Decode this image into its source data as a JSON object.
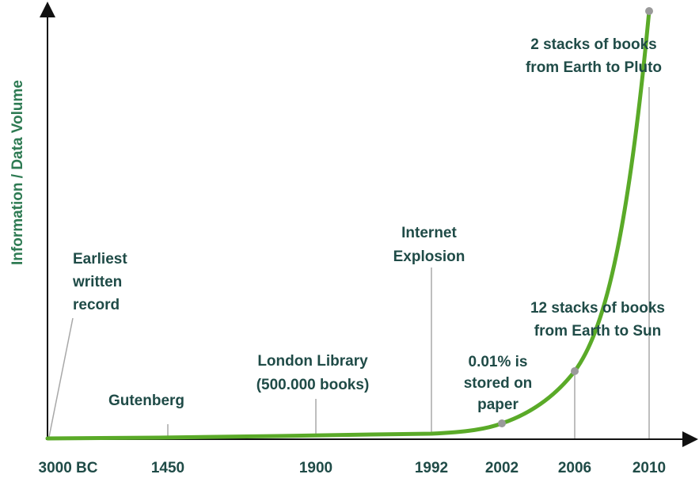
{
  "chart_data": {
    "type": "line",
    "title": "",
    "xlabel": "",
    "ylabel": "Information / Data Volume",
    "grid": false,
    "legend": "none",
    "line_color": "#5aaa28",
    "marker_color": "#9a9a9a",
    "text_color": "#1f4b47",
    "ylabel_color": "#2d7a52",
    "x_ticks": [
      "3000 BC",
      "1450",
      "1900",
      "1992",
      "2002",
      "2006",
      "2010"
    ],
    "annotations": [
      {
        "x": "3000 BC",
        "lines": [
          "Earliest",
          "written",
          "record"
        ]
      },
      {
        "x": "1450",
        "lines": [
          "Gutenberg"
        ]
      },
      {
        "x": "1900",
        "lines": [
          "London Library",
          "(500.000 books)"
        ]
      },
      {
        "x": "1992",
        "lines": [
          "Internet",
          "Explosion"
        ]
      },
      {
        "x": "2002",
        "lines": [
          "0.01% is",
          "stored on",
          "paper"
        ]
      },
      {
        "x": "2006",
        "lines": [
          "12 stacks of books",
          "from Earth to Sun"
        ]
      },
      {
        "x": "2010",
        "lines": [
          "2 stacks of books",
          "from Earth to Pluto"
        ]
      }
    ]
  }
}
